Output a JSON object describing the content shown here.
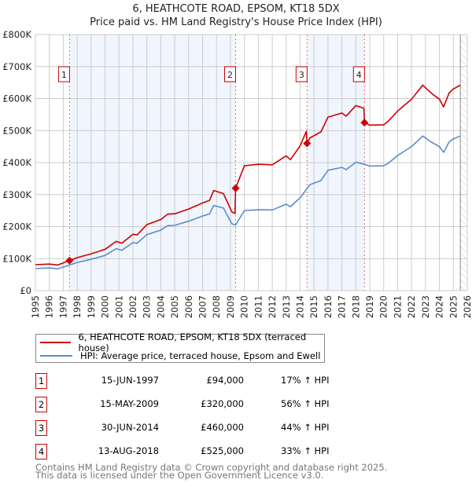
{
  "chart_data": {
    "type": "line",
    "title": "6, HEATHCOTE ROAD, EPSOM, KT18 5DX",
    "subtitle": "Price paid vs. HM Land Registry's House Price Index (HPI)",
    "xlim": [
      1995,
      2026
    ],
    "ylim": [
      0,
      800000
    ],
    "y_ticks": [
      {
        "v": 0,
        "label": "£0"
      },
      {
        "v": 100000,
        "label": "£100K"
      },
      {
        "v": 200000,
        "label": "£200K"
      },
      {
        "v": 300000,
        "label": "£300K"
      },
      {
        "v": 400000,
        "label": "£400K"
      },
      {
        "v": 500000,
        "label": "£500K"
      },
      {
        "v": 600000,
        "label": "£600K"
      },
      {
        "v": 700000,
        "label": "£700K"
      },
      {
        "v": 800000,
        "label": "£800K"
      }
    ],
    "x_ticks": [
      "1995",
      "1996",
      "1997",
      "1998",
      "1999",
      "2000",
      "2001",
      "2002",
      "2003",
      "2004",
      "2005",
      "2006",
      "2007",
      "2008",
      "2009",
      "2010",
      "2011",
      "2012",
      "2013",
      "2014",
      "2015",
      "2016",
      "2017",
      "2018",
      "2019",
      "2020",
      "2021",
      "2022",
      "2023",
      "2024",
      "2025",
      "2026"
    ],
    "grid": true,
    "shaded_ranges": [
      [
        1997.45,
        2009.37
      ],
      [
        2014.5,
        2018.62
      ]
    ],
    "hatched_from": 2025.5,
    "series": [
      {
        "name": "6, HEATHCOTE ROAD, EPSOM, KT18 5DX (terraced house)",
        "color": "#cc0000",
        "x": [
          1995,
          1996,
          1996.6,
          1997.45,
          1998,
          1999,
          2000,
          2000.8,
          2001.2,
          2002,
          2002.3,
          2003,
          2004,
          2004.5,
          2005,
          2006,
          2007,
          2007.5,
          2007.8,
          2008.5,
          2009.1,
          2009.33,
          2009.37,
          2010,
          2011,
          2012,
          2013,
          2013.3,
          2014,
          2014.45,
          2014.5,
          2014.7,
          2015.5,
          2016,
          2017,
          2017.3,
          2018,
          2018.58,
          2018.62,
          2019,
          2020,
          2020.3,
          2021,
          2022,
          2022.8,
          2023.5,
          2024,
          2024.3,
          2024.7,
          2025,
          2025.5
        ],
        "y": [
          81000,
          83000,
          80000,
          94000,
          103000,
          115000,
          129000,
          154000,
          148000,
          176000,
          174000,
          206000,
          222000,
          239000,
          240000,
          255000,
          274000,
          282000,
          313000,
          303000,
          246000,
          241000,
          320000,
          390000,
          395000,
          393000,
          421000,
          409000,
          452000,
          498000,
          460000,
          477000,
          496000,
          542000,
          555000,
          545000,
          578000,
          570000,
          525000,
          517000,
          518000,
          528000,
          561000,
          598000,
          642000,
          614000,
          598000,
          574000,
          618000,
          630000,
          642000
        ]
      },
      {
        "name": "HPI: Average price, terraced house, Epsom and Ewell",
        "color": "#5b8ccc",
        "x": [
          1995,
          1996,
          1996.6,
          1997.45,
          1998,
          1999,
          2000,
          2000.8,
          2001.2,
          2002,
          2002.3,
          2003,
          2004,
          2004.5,
          2005,
          2006,
          2007,
          2007.5,
          2007.8,
          2008.5,
          2009.1,
          2009.37,
          2010,
          2011,
          2012,
          2013,
          2013.3,
          2014,
          2014.5,
          2014.7,
          2015.5,
          2016,
          2017,
          2017.3,
          2018,
          2018.62,
          2019,
          2020,
          2020.3,
          2021,
          2022,
          2022.8,
          2023.5,
          2024,
          2024.3,
          2024.7,
          2025,
          2025.5
        ],
        "y": [
          69000,
          71000,
          68000,
          80000,
          88000,
          98000,
          110000,
          131000,
          126000,
          150000,
          148000,
          175000,
          189000,
          203000,
          204000,
          217000,
          233000,
          240000,
          266000,
          258000,
          209000,
          205000,
          250000,
          253000,
          252000,
          270000,
          262000,
          290000,
          319000,
          331000,
          344000,
          376000,
          385000,
          378000,
          401000,
          395000,
          389000,
          390000,
          397000,
          422000,
          450000,
          483000,
          462000,
          450000,
          432000,
          465000,
          474000,
          483000
        ]
      }
    ],
    "sales": [
      {
        "n": "1",
        "x": 1997.45,
        "date": "15-JUN-1997",
        "price": 94000,
        "price_label": "£94,000",
        "hpi": "17% ↑ HPI"
      },
      {
        "n": "2",
        "x": 2009.37,
        "date": "15-MAY-2009",
        "price": 320000,
        "price_label": "£320,000",
        "hpi": "56% ↑ HPI"
      },
      {
        "n": "3",
        "x": 2014.5,
        "date": "30-JUN-2014",
        "price": 460000,
        "price_label": "£460,000",
        "hpi": "44% ↑ HPI"
      },
      {
        "n": "4",
        "x": 2018.62,
        "date": "13-AUG-2018",
        "price": 525000,
        "price_label": "£525,000",
        "hpi": "33% ↑ HPI"
      }
    ]
  },
  "legend": {
    "property": "6, HEATHCOTE ROAD, EPSOM, KT18 5DX (terraced house)",
    "hpi": "HPI: Average price, terraced house, Epsom and Ewell"
  },
  "footer": {
    "line1": "Contains HM Land Registry data © Crown copyright and database right 2025.",
    "line2": "This data is licensed under the Open Government Licence v3.0."
  }
}
